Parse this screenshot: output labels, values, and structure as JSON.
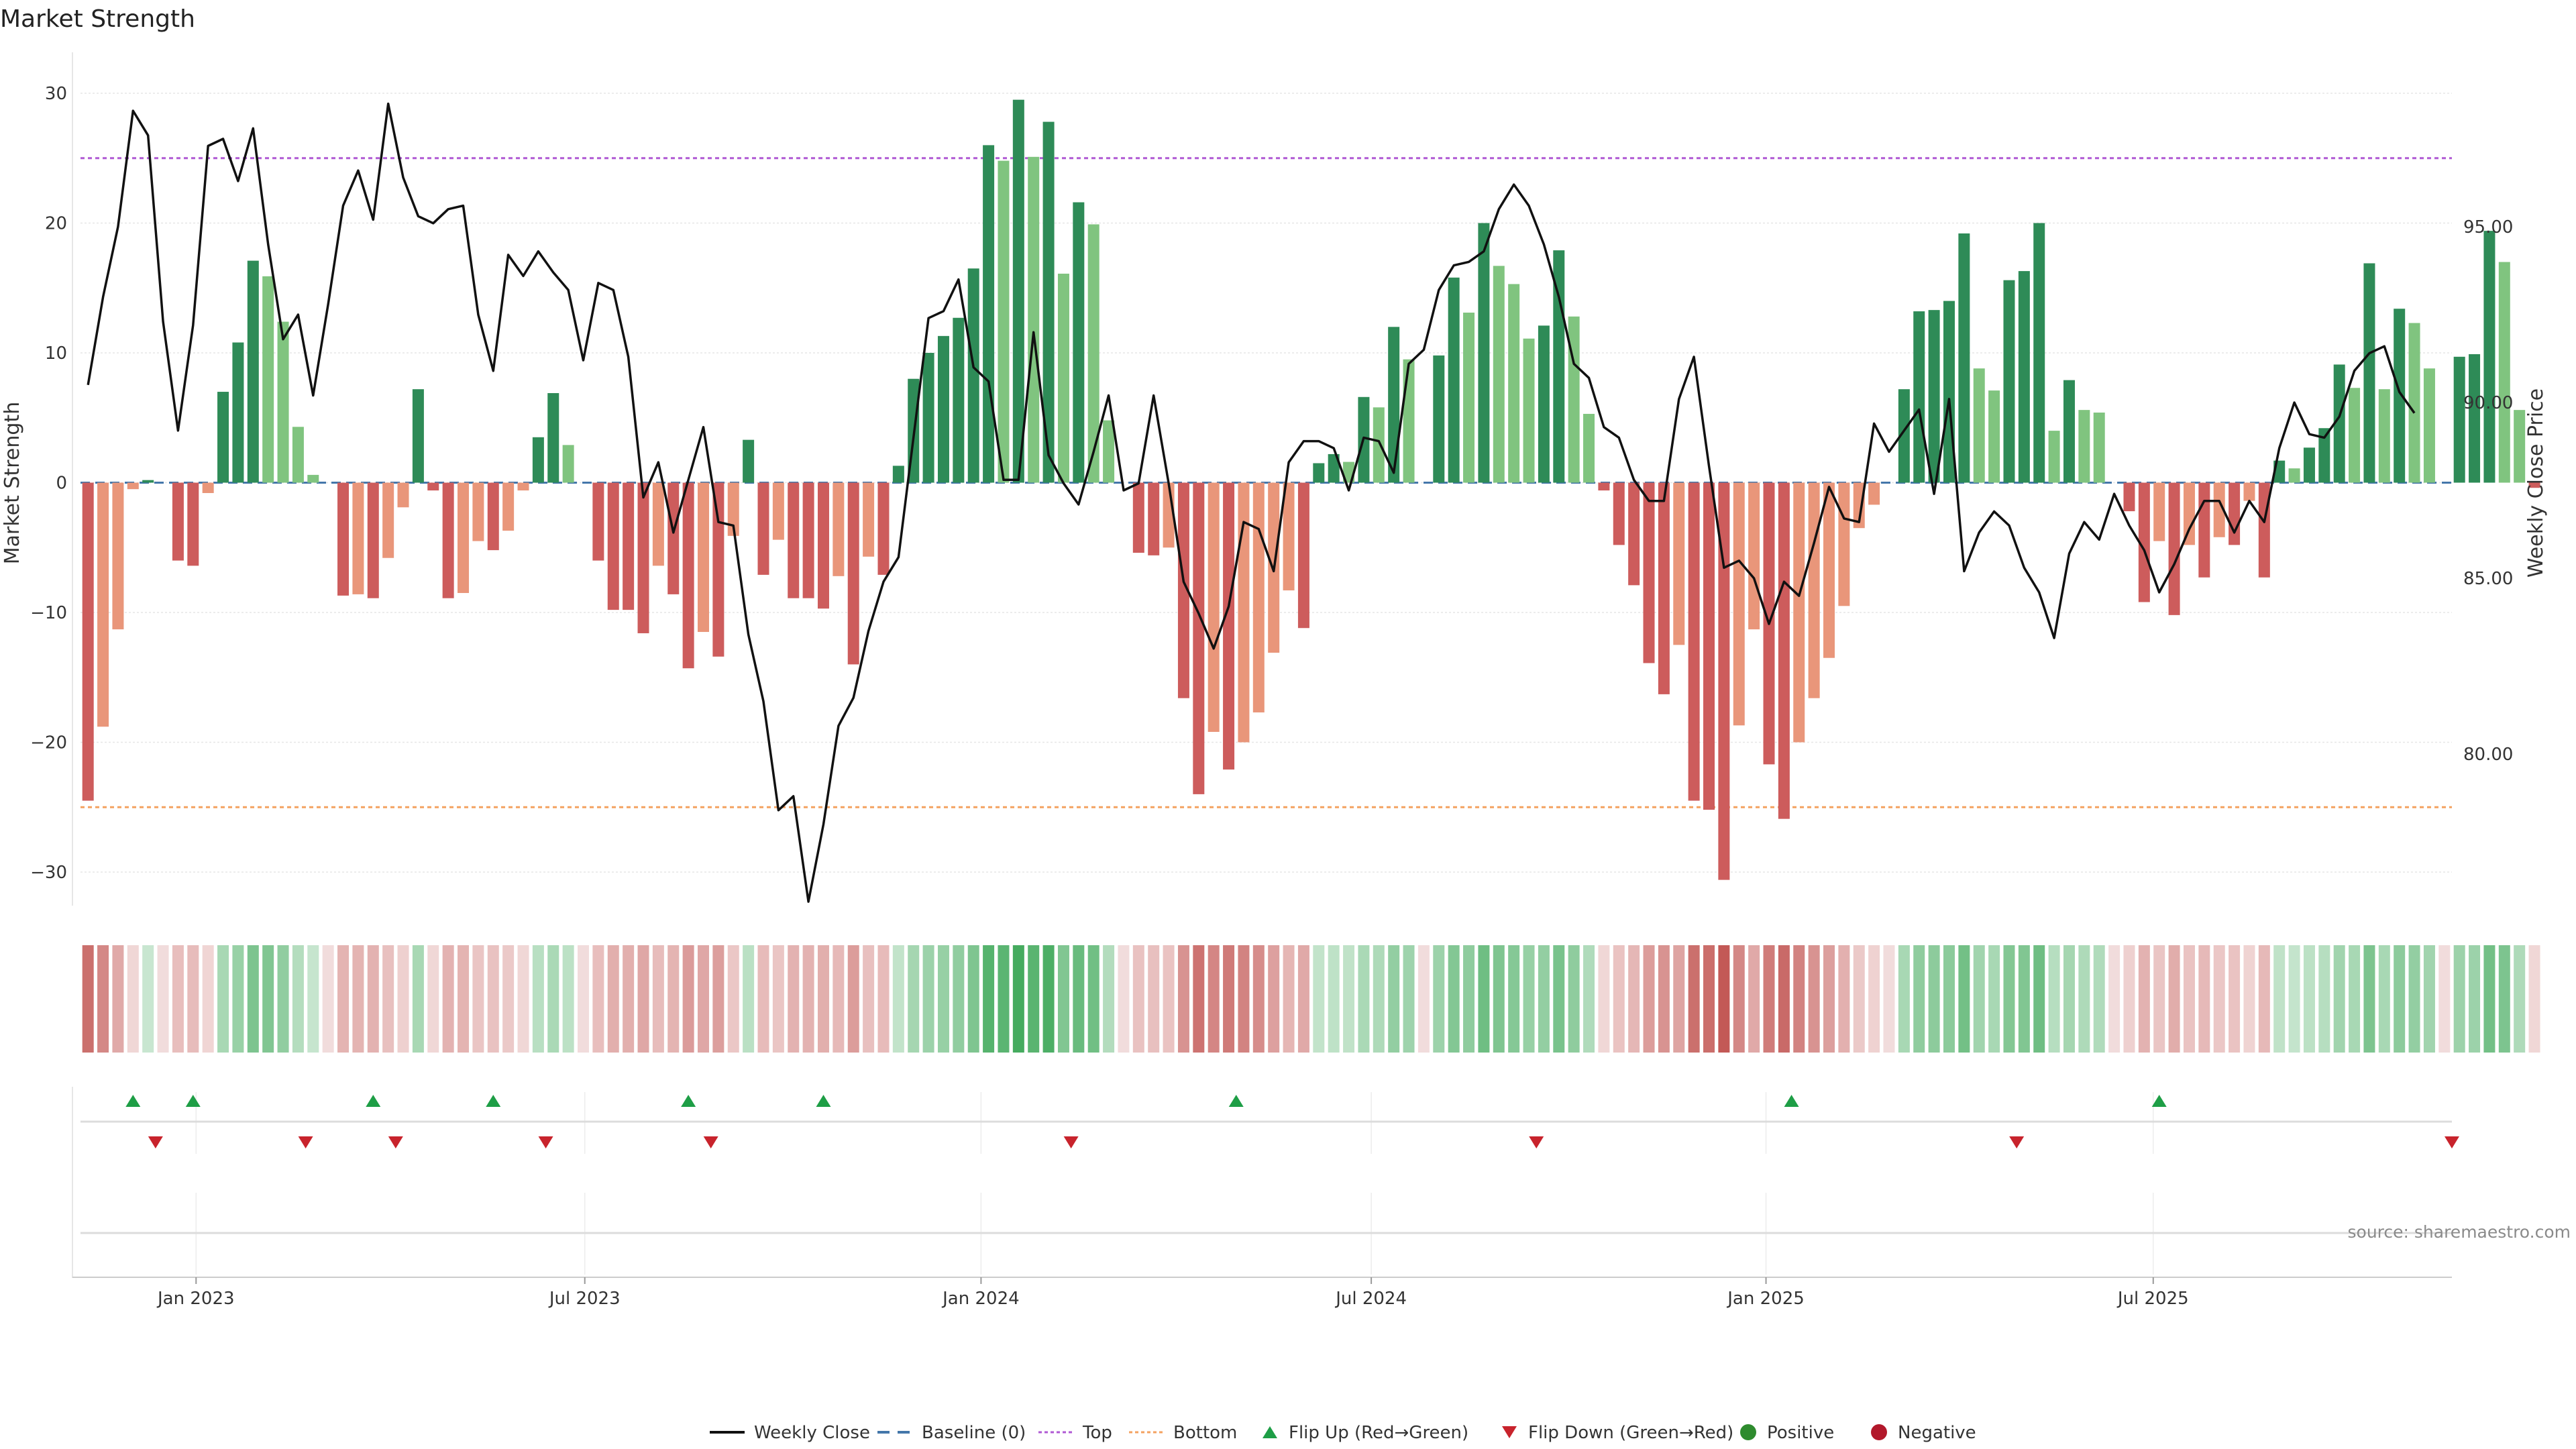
{
  "chart_data": {
    "type": "bar",
    "title": "Market Strength",
    "ylabel_left": "Market Strength",
    "ylabel_right": "Weekly Close Price",
    "ylim_left": [
      -33,
      30.5
    ],
    "ylim_right": [
      76.0,
      100.5
    ],
    "yticks_left": [
      30,
      20,
      10,
      0,
      -10,
      -20,
      -30
    ],
    "yticks_left_labels": [
      "30",
      "20",
      "10",
      "0",
      "−10",
      "−20",
      "−30"
    ],
    "yticks_right": [
      95,
      90,
      85,
      80
    ],
    "yticks_right_labels": [
      "95.00",
      "90.00",
      "85.00",
      "80.00"
    ],
    "top_level": 25,
    "bottom_level": -25,
    "x_start": "2022-11-14",
    "weeks": 158,
    "x_ticks": [
      {
        "label": "Jan 2023",
        "week": 7.7
      },
      {
        "label": "Jul 2023",
        "week": 33.6
      },
      {
        "label": "Jan 2024",
        "week": 60.0
      },
      {
        "label": "Jul 2024",
        "week": 86.0
      },
      {
        "label": "Jan 2025",
        "week": 112.3
      },
      {
        "label": "Jul 2025",
        "week": 138.1
      }
    ],
    "strength": [
      -24.5,
      -18.8,
      -11.3,
      -0.5,
      0.2,
      0,
      -6,
      -6.4,
      -0.8,
      7,
      10.8,
      17.1,
      15.9,
      12.4,
      4.3,
      0.6,
      0,
      -8.7,
      -8.6,
      -8.9,
      -5.8,
      -1.9,
      7.2,
      -0.6,
      -8.9,
      -8.5,
      -4.5,
      -5.2,
      -3.7,
      -0.6,
      3.5,
      6.9,
      2.9,
      0,
      -6,
      -9.8,
      -9.8,
      -11.6,
      -6.4,
      -8.6,
      -14.3,
      -11.5,
      -13.4,
      -4.1,
      3.3,
      -7.1,
      -4.4,
      -8.9,
      -8.9,
      -9.7,
      -7.2,
      -14,
      -5.7,
      -7.1,
      1.3,
      8,
      10,
      11.3,
      12.7,
      16.5,
      26,
      24.8,
      29.5,
      25.1,
      27.8,
      16.1,
      21.6,
      19.9,
      4.8,
      0,
      -5.4,
      -5.6,
      -5,
      -16.6,
      -24,
      -19.2,
      -22.1,
      -20,
      -17.7,
      -13.1,
      -8.3,
      -11.2,
      1.5,
      2.2,
      1.6,
      6.6,
      5.8,
      12,
      9.5,
      0,
      9.8,
      15.8,
      13.1,
      20,
      16.7,
      15.3,
      11.1,
      12.1,
      17.9,
      12.8,
      5.3,
      -0.6,
      -4.8,
      -7.9,
      -13.9,
      -16.3,
      -12.5,
      -24.5,
      -25.2,
      -30.6,
      -18.7,
      -11.3,
      -21.7,
      -25.9,
      -20,
      -16.6,
      -13.5,
      -9.5,
      -3.5,
      -1.7,
      0,
      7.2,
      13.2,
      13.3,
      14,
      19.2,
      8.8,
      7.1,
      15.6,
      16.3,
      20,
      4,
      7.9,
      5.6,
      5.4,
      0,
      -2.2,
      -9.2,
      -4.5,
      -10.2,
      -4.8,
      -7.3,
      -4.2,
      -4.8,
      -1.4,
      -7.3,
      1.7,
      1.1,
      2.7,
      4.2,
      9.1,
      7.3,
      16.9,
      7.2,
      13.4,
      12.3,
      8.8,
      0,
      9.7,
      9.9,
      19.4,
      17,
      5.6,
      -0.4
    ],
    "weekly_close": [
      90.5,
      93,
      95,
      98.3,
      97.6,
      92.3,
      89.2,
      92.2,
      97.3,
      97.5,
      96.3,
      97.8,
      94.5,
      91.8,
      92.5,
      90.2,
      92.8,
      95.6,
      96.6,
      95.2,
      98.5,
      96.4,
      95.3,
      95.1,
      95.5,
      95.6,
      92.5,
      90.9,
      94.2,
      93.6,
      94.3,
      93.7,
      93.2,
      91.2,
      93.4,
      93.2,
      91.3,
      87.3,
      88.3,
      86.3,
      87.8,
      89.3,
      86.6,
      86.5,
      83.4,
      81.5,
      78.4,
      78.8,
      75.8,
      78,
      80.8,
      81.6,
      83.5,
      84.9,
      85.6,
      89,
      92.4,
      92.6,
      93.5,
      91,
      90.6,
      87.8,
      87.8,
      92,
      88.5,
      87.7,
      87.1,
      88.6,
      90.2,
      87.5,
      87.7,
      90.2,
      87.7,
      84.9,
      84,
      83,
      84.2,
      86.6,
      86.4,
      85.2,
      88.3,
      88.9,
      88.9,
      88.7,
      87.5,
      89,
      88.9,
      88,
      91.1,
      91.5,
      93.2,
      93.9,
      94,
      94.3,
      95.5,
      96.2,
      95.6,
      94.5,
      93,
      91.1,
      90.7,
      89.3,
      89,
      87.8,
      87.2,
      87.2,
      90.1,
      91.3,
      88.2,
      85.3,
      85.5,
      85,
      83.7,
      84.9,
      84.5,
      86,
      87.6,
      86.7,
      86.6,
      89.4,
      88.6,
      89.2,
      89.8,
      87.4,
      90.1,
      85.2,
      86.3,
      86.9,
      86.5,
      85.3,
      84.6,
      83.3,
      85.7,
      86.6,
      86.1,
      87.4,
      86.5,
      85.8,
      84.6,
      85.4,
      86.4,
      87.2,
      87.2,
      86.3,
      87.2,
      86.6,
      88.7,
      90,
      89.1,
      89,
      89.6,
      90.9,
      91.4,
      91.6,
      90.3,
      89.7
    ],
    "flip_up": [
      3.5,
      7.5,
      19.5,
      27.5,
      40.5,
      49.5,
      77,
      114,
      138.5
    ],
    "flip_down": [
      5,
      15,
      21,
      31,
      42,
      66,
      97,
      129,
      158
    ],
    "legend": [
      "Weekly Close",
      "Baseline (0)",
      "Top",
      "Bottom",
      "Flip Up (Red→Green)",
      "Flip Down (Green→Red)",
      "Positive",
      "Negative"
    ],
    "source": "source: sharemaestro.com"
  },
  "colors": {
    "pos_dark": "#2e8b57",
    "pos_light": "#80c47f",
    "neg_dark": "#cd5c5c",
    "neg_light": "#e9967a",
    "line": "#111111",
    "baseline": "#4477aa",
    "top": "#b05ad4",
    "bottom": "#f4a261",
    "flip_up": "#1e9e46",
    "flip_down": "#c8232c",
    "positive_dot": "#2e8b2e",
    "negative_dot": "#b2182b"
  }
}
